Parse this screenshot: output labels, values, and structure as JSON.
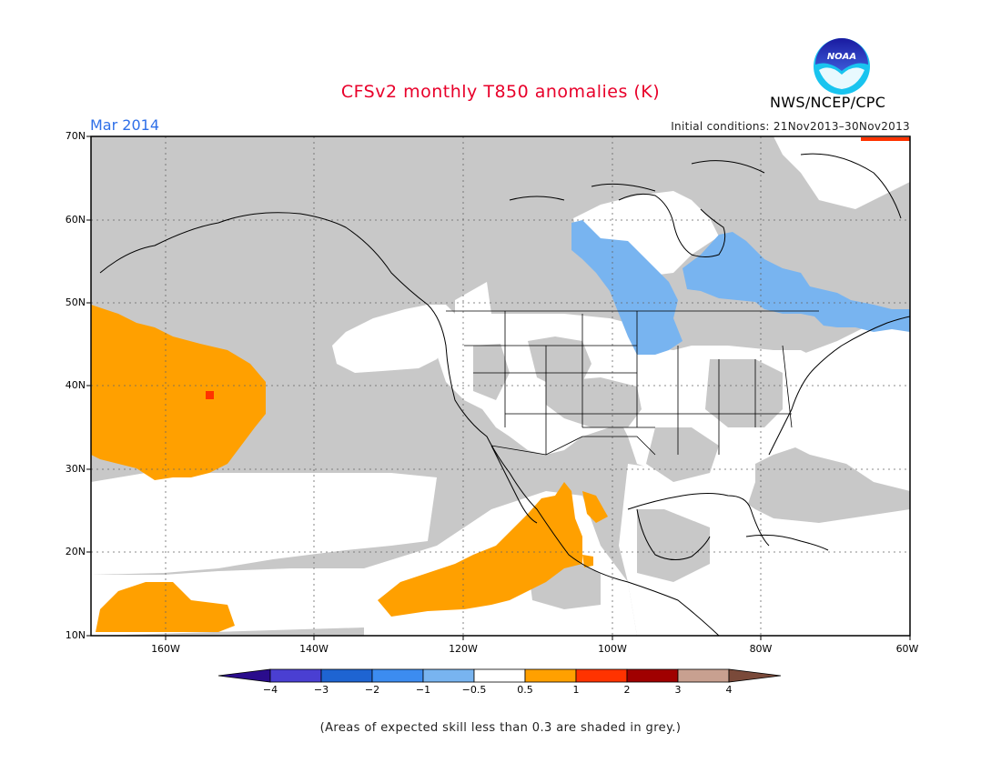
{
  "header": {
    "title": "CFSv2 monthly T850 anomalies (K)",
    "month": "Mar 2014",
    "initial_conditions": "Initial conditions: 21Nov2013–30Nov2013",
    "org": "NWS/NCEP/CPC",
    "logo_text": "NOAA"
  },
  "map": {
    "lat_labels": [
      "70N",
      "60N",
      "50N",
      "40N",
      "30N",
      "20N",
      "10N"
    ],
    "lon_labels": [
      "160W",
      "140W",
      "120W",
      "100W",
      "80W",
      "60W"
    ],
    "colors": {
      "grey_skill": "#c8c8c8",
      "neutral": "#ffffff",
      "warm_0_5_1": "#ffa000",
      "warm_1_2": "#ff3300",
      "cool_m1_m0_5": "#78b4f0"
    }
  },
  "colorbar": {
    "labels": [
      "−4",
      "−3",
      "−2",
      "−1",
      "−0.5",
      "0.5",
      "1",
      "2",
      "3",
      "4"
    ],
    "colors": [
      "#2a0c8c",
      "#4a3fd2",
      "#1e64d2",
      "#3c8cf0",
      "#78b4f0",
      "#ffffff",
      "#ffa000",
      "#ff3300",
      "#a00000",
      "#c8a090",
      "#7a4a3a"
    ]
  },
  "footnote": "(Areas of expected skill less than 0.3 are shaded in grey.)"
}
